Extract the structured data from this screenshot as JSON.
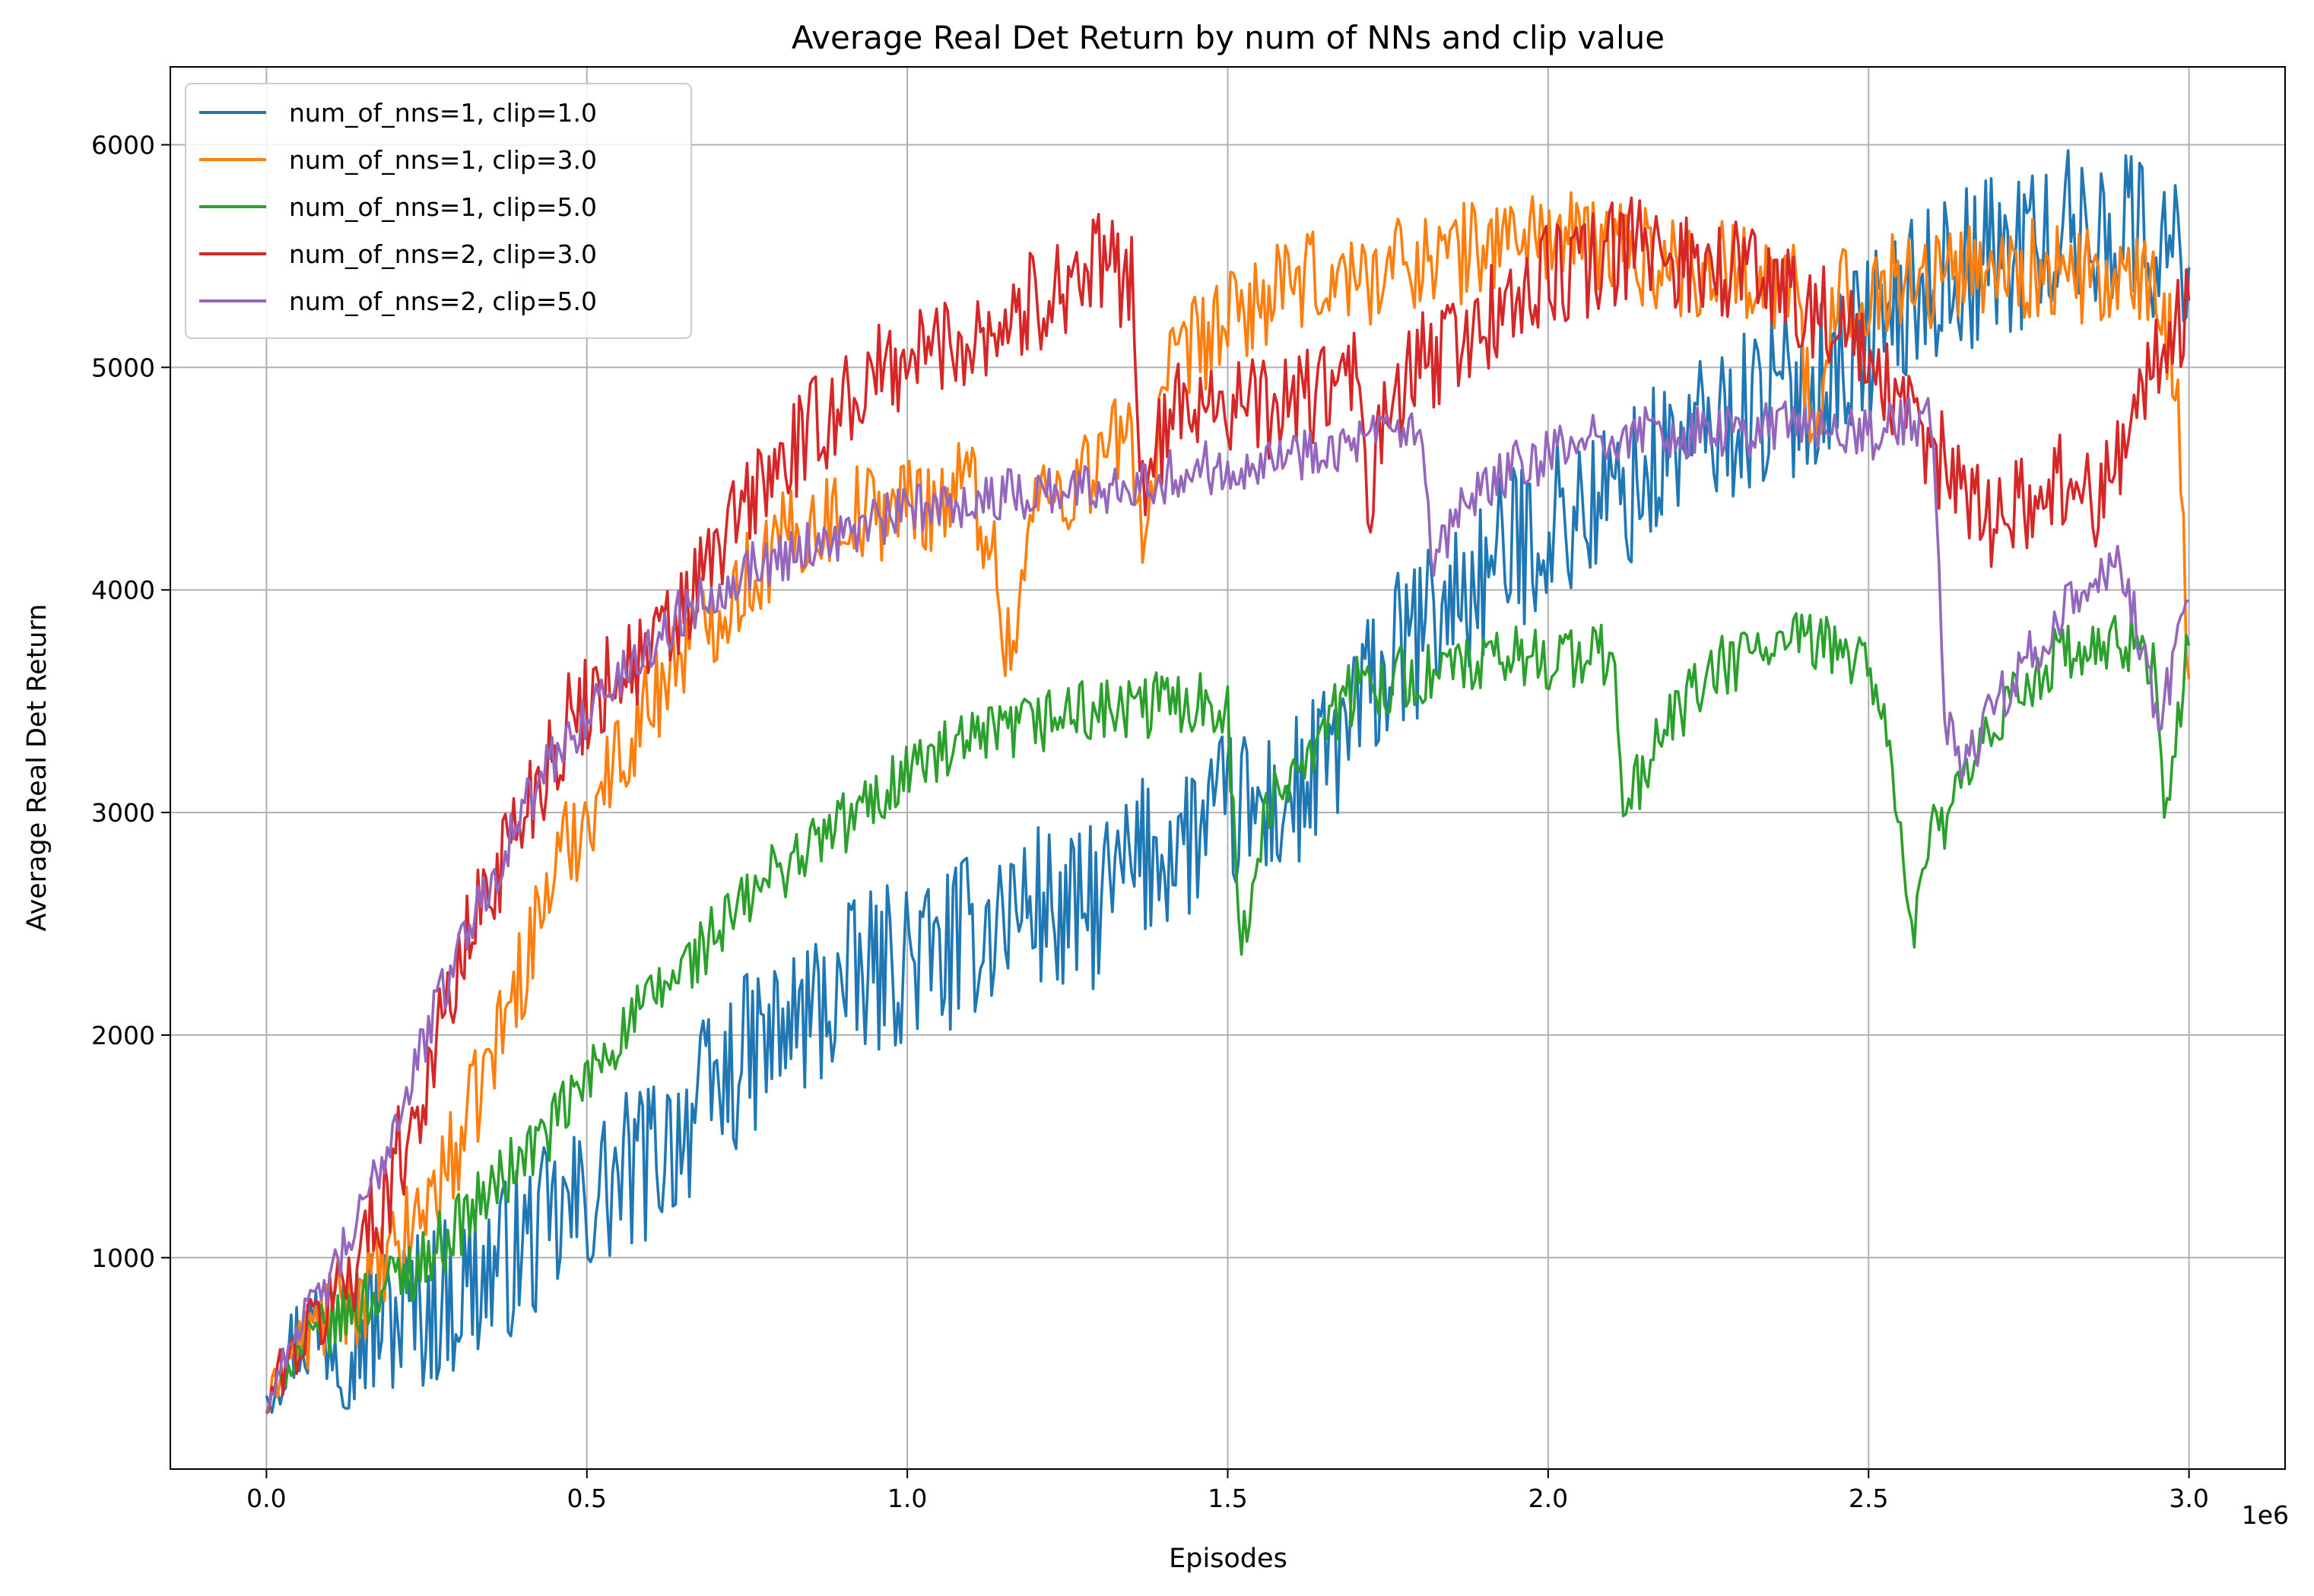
{
  "chart_data": {
    "type": "line",
    "title": "Average Real Det Return by num of NNs and clip value",
    "xlabel": "Episodes",
    "ylabel": "Average Real Det Return",
    "x_offset_label": "1e6",
    "xlim": [
      -0.15,
      3.15
    ],
    "ylim": [
      50,
      6350
    ],
    "x_ticks": [
      0.0,
      0.5,
      1.0,
      1.5,
      2.0,
      2.5,
      3.0
    ],
    "x_tick_labels": [
      "0.0",
      "0.5",
      "1.0",
      "1.5",
      "2.0",
      "2.5",
      "3.0"
    ],
    "y_ticks": [
      1000,
      2000,
      3000,
      4000,
      5000,
      6000
    ],
    "y_tick_labels": [
      "1000",
      "2000",
      "3000",
      "4000",
      "5000",
      "6000"
    ],
    "grid": true,
    "legend_position": "top-left",
    "x_unit_scale": 1000000,
    "series": [
      {
        "name": "num_of_nns=1, clip=1.0",
        "color": "#1f77b4",
        "noise": 380,
        "x": [
          0.0,
          0.02,
          0.05,
          0.1,
          0.15,
          0.2,
          0.25,
          0.3,
          0.35,
          0.4,
          0.45,
          0.5,
          0.55,
          0.6,
          0.65,
          0.7,
          0.75,
          0.8,
          0.85,
          0.9,
          0.95,
          1.0,
          1.05,
          1.1,
          1.15,
          1.2,
          1.25,
          1.3,
          1.35,
          1.4,
          1.45,
          1.5,
          1.55,
          1.6,
          1.65,
          1.7,
          1.75,
          1.8,
          1.85,
          1.9,
          1.95,
          2.0,
          2.05,
          2.1,
          2.15,
          2.2,
          2.25,
          2.3,
          2.35,
          2.4,
          2.45,
          2.5,
          2.55,
          2.6,
          2.65,
          2.7,
          2.75,
          2.8,
          2.85,
          2.9,
          2.95,
          3.0
        ],
        "y": [
          380,
          500,
          650,
          700,
          690,
          740,
          780,
          850,
          950,
          1050,
          1150,
          1250,
          1350,
          1450,
          1600,
          1750,
          1900,
          2000,
          2100,
          2200,
          2280,
          2350,
          2350,
          2450,
          2550,
          2600,
          2500,
          2600,
          2750,
          2850,
          2900,
          3000,
          3000,
          3050,
          3200,
          3450,
          3650,
          3800,
          3950,
          4050,
          4200,
          4300,
          4350,
          4400,
          4500,
          4650,
          4700,
          4800,
          4850,
          4900,
          5000,
          5150,
          5250,
          5400,
          5450,
          5500,
          5550,
          5600,
          5600,
          5650,
          5550,
          5450
        ]
      },
      {
        "name": "num_of_nns=1, clip=3.0",
        "color": "#ff7f0e",
        "noise": 230,
        "x": [
          0.0,
          0.02,
          0.05,
          0.1,
          0.15,
          0.2,
          0.25,
          0.3,
          0.35,
          0.4,
          0.45,
          0.5,
          0.55,
          0.6,
          0.65,
          0.7,
          0.75,
          0.8,
          0.85,
          0.9,
          0.95,
          1.0,
          1.05,
          1.1,
          1.13,
          1.16,
          1.2,
          1.25,
          1.3,
          1.35,
          1.37,
          1.4,
          1.45,
          1.5,
          1.55,
          1.6,
          1.65,
          1.7,
          1.75,
          1.8,
          1.85,
          1.9,
          1.95,
          2.0,
          2.05,
          2.1,
          2.15,
          2.2,
          2.25,
          2.3,
          2.35,
          2.38,
          2.42,
          2.45,
          2.5,
          2.55,
          2.6,
          2.65,
          2.7,
          2.75,
          2.8,
          2.85,
          2.9,
          2.95,
          2.98,
          3.0
        ],
        "y": [
          300,
          480,
          600,
          750,
          850,
          1000,
          1250,
          1500,
          1900,
          2300,
          2750,
          3000,
          3250,
          3500,
          3750,
          3900,
          4050,
          4200,
          4300,
          4350,
          4350,
          4400,
          4400,
          4500,
          4200,
          3700,
          4400,
          4450,
          4600,
          4700,
          4200,
          4900,
          5100,
          5200,
          5300,
          5350,
          5400,
          5400,
          5450,
          5500,
          5500,
          5550,
          5600,
          5600,
          5550,
          5550,
          5500,
          5450,
          5450,
          5450,
          5400,
          5400,
          4600,
          5350,
          5350,
          5400,
          5400,
          5450,
          5450,
          5450,
          5400,
          5400,
          5350,
          5350,
          5000,
          3600
        ]
      },
      {
        "name": "num_of_nns=1, clip=5.0",
        "color": "#2ca02c",
        "noise": 150,
        "x": [
          0.0,
          0.02,
          0.05,
          0.1,
          0.15,
          0.2,
          0.25,
          0.3,
          0.35,
          0.4,
          0.45,
          0.5,
          0.55,
          0.6,
          0.65,
          0.7,
          0.75,
          0.8,
          0.85,
          0.9,
          0.95,
          1.0,
          1.05,
          1.1,
          1.15,
          1.2,
          1.25,
          1.3,
          1.35,
          1.4,
          1.45,
          1.5,
          1.52,
          1.55,
          1.6,
          1.65,
          1.7,
          1.75,
          1.8,
          1.85,
          1.9,
          1.95,
          2.0,
          2.05,
          2.1,
          2.12,
          2.15,
          2.2,
          2.25,
          2.3,
          2.35,
          2.4,
          2.45,
          2.5,
          2.55,
          2.56,
          2.6,
          2.65,
          2.7,
          2.75,
          2.8,
          2.85,
          2.9,
          2.95,
          2.96,
          3.0
        ],
        "y": [
          300,
          450,
          580,
          700,
          800,
          900,
          1000,
          1150,
          1300,
          1450,
          1600,
          1800,
          2000,
          2150,
          2300,
          2450,
          2600,
          2750,
          2850,
          2950,
          3050,
          3200,
          3250,
          3300,
          3350,
          3400,
          3450,
          3450,
          3450,
          3500,
          3500,
          3500,
          2300,
          2900,
          3200,
          3400,
          3550,
          3600,
          3600,
          3650,
          3650,
          3700,
          3700,
          3700,
          3700,
          3000,
          3200,
          3450,
          3600,
          3700,
          3750,
          3750,
          3750,
          3700,
          3000,
          2400,
          2900,
          3100,
          3400,
          3600,
          3700,
          3700,
          3750,
          3700,
          2900,
          3750
        ]
      },
      {
        "name": "num_of_nns=2, clip=3.0",
        "color": "#d62728",
        "noise": 240,
        "x": [
          0.0,
          0.02,
          0.05,
          0.1,
          0.15,
          0.2,
          0.25,
          0.3,
          0.35,
          0.4,
          0.45,
          0.5,
          0.55,
          0.6,
          0.65,
          0.7,
          0.75,
          0.8,
          0.85,
          0.9,
          0.95,
          1.0,
          1.05,
          1.1,
          1.15,
          1.2,
          1.25,
          1.3,
          1.35,
          1.37,
          1.4,
          1.45,
          1.5,
          1.55,
          1.6,
          1.65,
          1.7,
          1.72,
          1.75,
          1.8,
          1.85,
          1.9,
          1.95,
          2.0,
          2.05,
          2.1,
          2.15,
          2.2,
          2.25,
          2.3,
          2.35,
          2.4,
          2.45,
          2.5,
          2.55,
          2.6,
          2.65,
          2.7,
          2.75,
          2.8,
          2.85,
          2.9,
          2.95,
          3.0
        ],
        "y": [
          300,
          480,
          600,
          800,
          1050,
          1400,
          1800,
          2300,
          2700,
          3000,
          3300,
          3500,
          3650,
          3700,
          3900,
          4150,
          4400,
          4550,
          4700,
          4850,
          4950,
          5050,
          5100,
          5150,
          5200,
          5300,
          5400,
          5450,
          5400,
          4400,
          4700,
          4900,
          4850,
          4800,
          4850,
          4900,
          4950,
          4400,
          4800,
          5000,
          5100,
          5200,
          5300,
          5400,
          5450,
          5500,
          5550,
          5500,
          5450,
          5450,
          5400,
          5300,
          5200,
          5000,
          4800,
          4600,
          4500,
          4300,
          4400,
          4500,
          4400,
          4700,
          5000,
          5300
        ]
      },
      {
        "name": "num_of_nns=2, clip=5.0",
        "color": "#9467bd",
        "noise": 120,
        "x": [
          0.0,
          0.02,
          0.05,
          0.1,
          0.15,
          0.2,
          0.25,
          0.3,
          0.35,
          0.4,
          0.45,
          0.5,
          0.55,
          0.6,
          0.65,
          0.7,
          0.75,
          0.8,
          0.85,
          0.9,
          0.95,
          1.0,
          1.05,
          1.1,
          1.15,
          1.2,
          1.25,
          1.3,
          1.35,
          1.4,
          1.45,
          1.5,
          1.55,
          1.6,
          1.65,
          1.7,
          1.75,
          1.8,
          1.82,
          1.85,
          1.9,
          1.95,
          2.0,
          2.05,
          2.1,
          2.15,
          2.2,
          2.25,
          2.3,
          2.35,
          2.4,
          2.45,
          2.5,
          2.55,
          2.6,
          2.62,
          2.65,
          2.7,
          2.75,
          2.8,
          2.85,
          2.9,
          2.95,
          2.98,
          3.0
        ],
        "y": [
          300,
          500,
          700,
          900,
          1200,
          1600,
          2000,
          2400,
          2700,
          3000,
          3250,
          3450,
          3600,
          3750,
          3900,
          4000,
          4100,
          4150,
          4200,
          4250,
          4300,
          4350,
          4400,
          4400,
          4420,
          4450,
          4450,
          4450,
          4500,
          4500,
          4550,
          4550,
          4600,
          4600,
          4650,
          4650,
          4700,
          4700,
          4050,
          4300,
          4450,
          4550,
          4600,
          4650,
          4700,
          4700,
          4700,
          4700,
          4700,
          4750,
          4750,
          4700,
          4700,
          4750,
          4750,
          3400,
          3200,
          3500,
          3700,
          3900,
          4000,
          4100,
          3400,
          3700,
          3950
        ]
      }
    ]
  }
}
